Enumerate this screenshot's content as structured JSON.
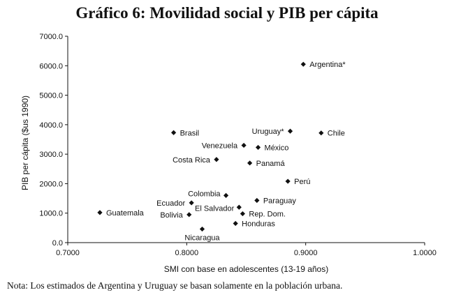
{
  "chart_data": {
    "type": "scatter",
    "title": "Gráfico 6: Movilidad social y PIB per cápita",
    "xlabel": "SMI con base en adolescentes (13-19 años)",
    "ylabel": "PIB per cápita ($us 1990)",
    "xlim": [
      0.7,
      1.0
    ],
    "ylim": [
      0,
      7000
    ],
    "xticks": [
      "0.7000",
      "0.8000",
      "0.9000",
      "1.0000"
    ],
    "yticks": [
      "0.0",
      "1000.0",
      "2000.0",
      "3000.0",
      "4000.0",
      "5000.0",
      "6000.0",
      "7000.0"
    ],
    "grid": false,
    "marker_color": "#111111",
    "points": [
      {
        "label": "Argentina*",
        "x": 0.898,
        "y": 6050
      },
      {
        "label": "Brasil",
        "x": 0.789,
        "y": 3730
      },
      {
        "label": "Uruguay*",
        "x": 0.887,
        "y": 3780
      },
      {
        "label": "Chile",
        "x": 0.913,
        "y": 3720
      },
      {
        "label": "Venezuela",
        "x": 0.848,
        "y": 3300
      },
      {
        "label": "México",
        "x": 0.86,
        "y": 3230
      },
      {
        "label": "Costa Rica",
        "x": 0.825,
        "y": 2820
      },
      {
        "label": "Panamá",
        "x": 0.853,
        "y": 2700
      },
      {
        "label": "Perú",
        "x": 0.885,
        "y": 2080
      },
      {
        "label": "Colombia",
        "x": 0.833,
        "y": 1600
      },
      {
        "label": "Paraguay",
        "x": 0.859,
        "y": 1430
      },
      {
        "label": "Ecuador",
        "x": 0.804,
        "y": 1350
      },
      {
        "label": "El Salvador",
        "x": 0.844,
        "y": 1200
      },
      {
        "label": "Rep. Dom.",
        "x": 0.847,
        "y": 980
      },
      {
        "label": "Guatemala",
        "x": 0.727,
        "y": 1020
      },
      {
        "label": "Bolivia",
        "x": 0.802,
        "y": 950
      },
      {
        "label": "Honduras",
        "x": 0.841,
        "y": 650
      },
      {
        "label": "Nicaragua",
        "x": 0.813,
        "y": 460
      }
    ]
  },
  "note": "Nota: Los estimados de Argentina y Uruguay se basan solamente en la población urbana."
}
